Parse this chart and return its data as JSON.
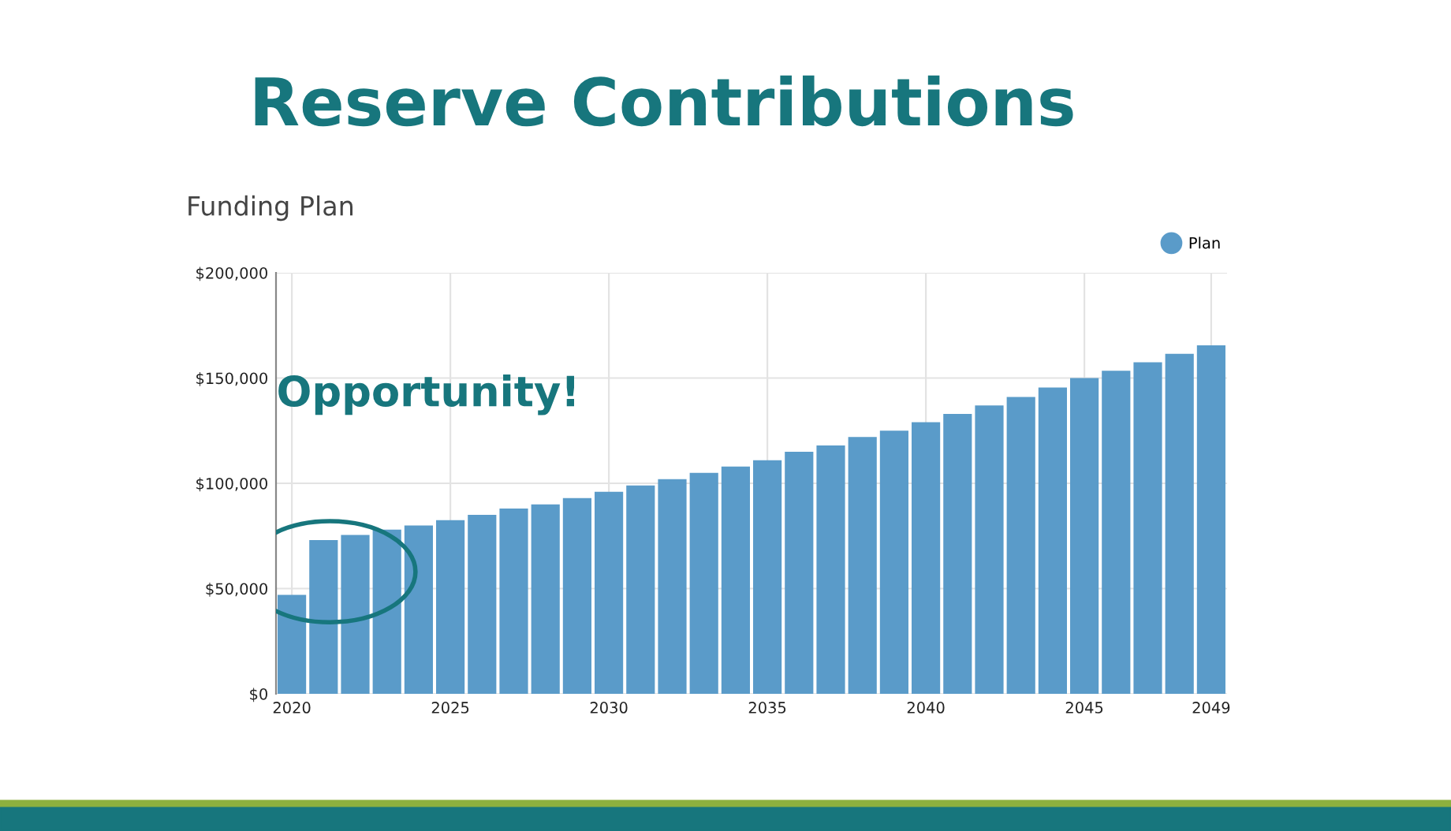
{
  "chart_data": {
    "type": "bar",
    "title": "Reserve Contributions",
    "subtitle": "Funding Plan",
    "x": [
      2020,
      2021,
      2022,
      2023,
      2024,
      2025,
      2026,
      2027,
      2028,
      2029,
      2030,
      2031,
      2032,
      2033,
      2034,
      2035,
      2036,
      2037,
      2038,
      2039,
      2040,
      2041,
      2042,
      2043,
      2044,
      2045,
      2046,
      2047,
      2048,
      2049
    ],
    "series": [
      {
        "name": "Plan",
        "color": "#5a9bc9",
        "values": [
          47000,
          73000,
          75500,
          78000,
          80000,
          82500,
          85000,
          88000,
          90000,
          93000,
          96000,
          99000,
          102000,
          105000,
          108000,
          111000,
          115000,
          118000,
          122000,
          125000,
          129000,
          133000,
          137000,
          141000,
          145500,
          150000,
          153500,
          157500,
          161500,
          165500
        ]
      }
    ],
    "xlim": [
      2019.5,
      2049.5
    ],
    "xticks": [
      2020,
      2025,
      2030,
      2035,
      2040,
      2045,
      2049
    ],
    "ylim": [
      0,
      200000
    ],
    "yticks": [
      {
        "value": 0,
        "label": "$0"
      },
      {
        "value": 50000,
        "label": "$50,000"
      },
      {
        "value": 100000,
        "label": "$100,000"
      },
      {
        "value": 150000,
        "label": "$150,000"
      },
      {
        "value": 200000,
        "label": "$200,000"
      }
    ],
    "grid": true,
    "legend": "top right",
    "annotations": [
      "Opportunity!"
    ]
  }
}
